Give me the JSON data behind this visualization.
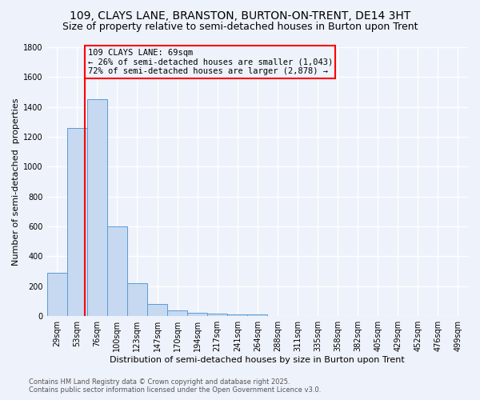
{
  "title": "109, CLAYS LANE, BRANSTON, BURTON-ON-TRENT, DE14 3HT",
  "subtitle": "Size of property relative to semi-detached houses in Burton upon Trent",
  "xlabel": "Distribution of semi-detached houses by size in Burton upon Trent",
  "ylabel": "Number of semi-detached  properties",
  "categories": [
    "29sqm",
    "53sqm",
    "76sqm",
    "100sqm",
    "123sqm",
    "147sqm",
    "170sqm",
    "194sqm",
    "217sqm",
    "241sqm",
    "264sqm",
    "288sqm",
    "311sqm",
    "335sqm",
    "358sqm",
    "382sqm",
    "405sqm",
    "429sqm",
    "452sqm",
    "476sqm",
    "499sqm"
  ],
  "bar_heights": [
    290,
    1260,
    1450,
    600,
    220,
    80,
    40,
    25,
    15,
    10,
    10,
    0,
    0,
    0,
    0,
    0,
    0,
    0,
    0,
    0,
    0
  ],
  "bar_color": "#c6d9f0",
  "bar_edge_color": "#5b9bd5",
  "subject_label": "109 CLAYS LANE: 69sqm",
  "annotation_line1": "← 26% of semi-detached houses are smaller (1,043)",
  "annotation_line2": "72% of semi-detached houses are larger (2,878) →",
  "vline_x_index": 1.38,
  "ylim": [
    0,
    1800
  ],
  "yticks": [
    0,
    200,
    400,
    600,
    800,
    1000,
    1200,
    1400,
    1600,
    1800
  ],
  "footnote1": "Contains HM Land Registry data © Crown copyright and database right 2025.",
  "footnote2": "Contains public sector information licensed under the Open Government Licence v3.0.",
  "background_color": "#eef2fb",
  "grid_color": "#ffffff",
  "title_fontsize": 10,
  "subtitle_fontsize": 9,
  "xlabel_fontsize": 8,
  "ylabel_fontsize": 8,
  "tick_fontsize": 7,
  "annotation_fontsize": 7.5,
  "footnote_fontsize": 6
}
